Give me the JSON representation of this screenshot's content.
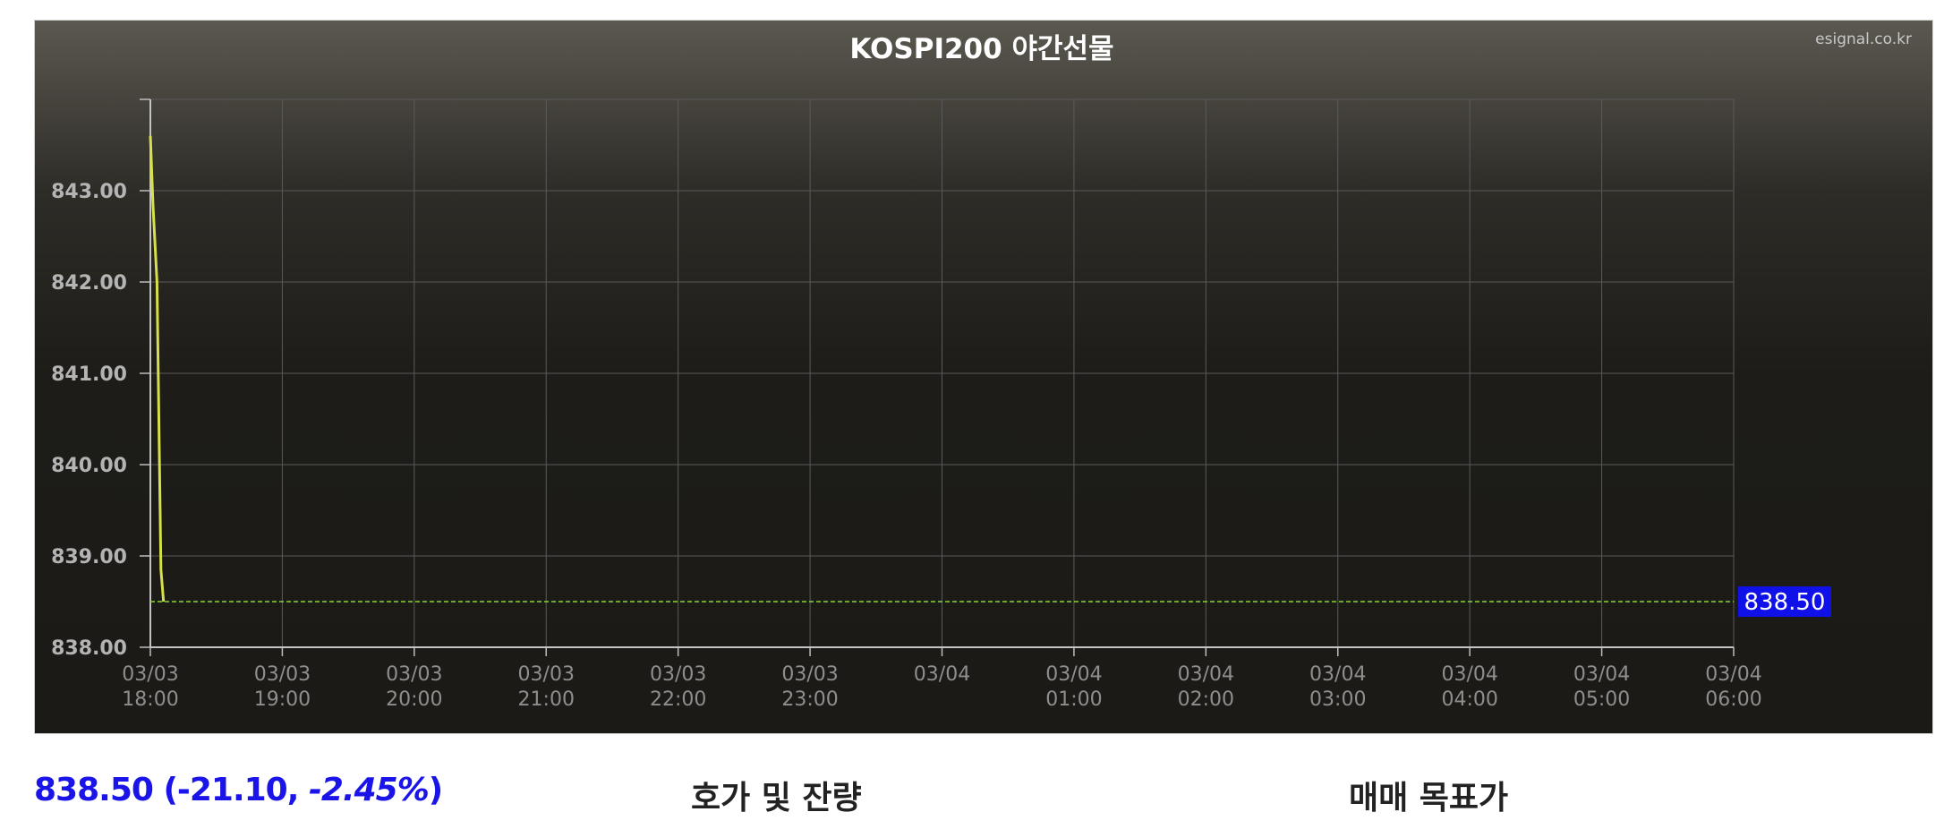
{
  "chart_data": {
    "type": "line",
    "title": "KOSPI200 야간선물",
    "credit": "esignal.co.kr",
    "x_ticks": [
      "03/03\n18:00",
      "03/03\n19:00",
      "03/03\n20:00",
      "03/03\n21:00",
      "03/03\n22:00",
      "03/03\n23:00",
      "03/04",
      "03/04\n01:00",
      "03/04\n02:00",
      "03/04\n03:00",
      "03/04\n04:00",
      "03/04\n05:00",
      "03/04\n06:00"
    ],
    "x_range_hours": [
      0,
      12
    ],
    "y_ticks": [
      "838.00",
      "839.00",
      "840.00",
      "841.00",
      "842.00",
      "843.00"
    ],
    "ylim": [
      838.0,
      844.0
    ],
    "series": [
      {
        "color": "#d6e04a",
        "points": [
          {
            "t": 0.0,
            "y": 843.6
          },
          {
            "t": 0.02,
            "y": 842.85
          },
          {
            "t": 0.05,
            "y": 842.0
          },
          {
            "t": 0.08,
            "y": 838.85
          },
          {
            "t": 0.1,
            "y": 838.5
          }
        ]
      }
    ],
    "last_value": 838.5,
    "last_label": "838.50",
    "last_line_color": "#8ecf3c",
    "last_label_bg": "#1010e8",
    "grid": true
  },
  "footer": {
    "quote_main": "838.50 (-21.10, ",
    "quote_pct": "-2.45%",
    "quote_end": ")",
    "orderbook_heading": "호가 및 잔량",
    "target_heading": "매매 목표가"
  }
}
